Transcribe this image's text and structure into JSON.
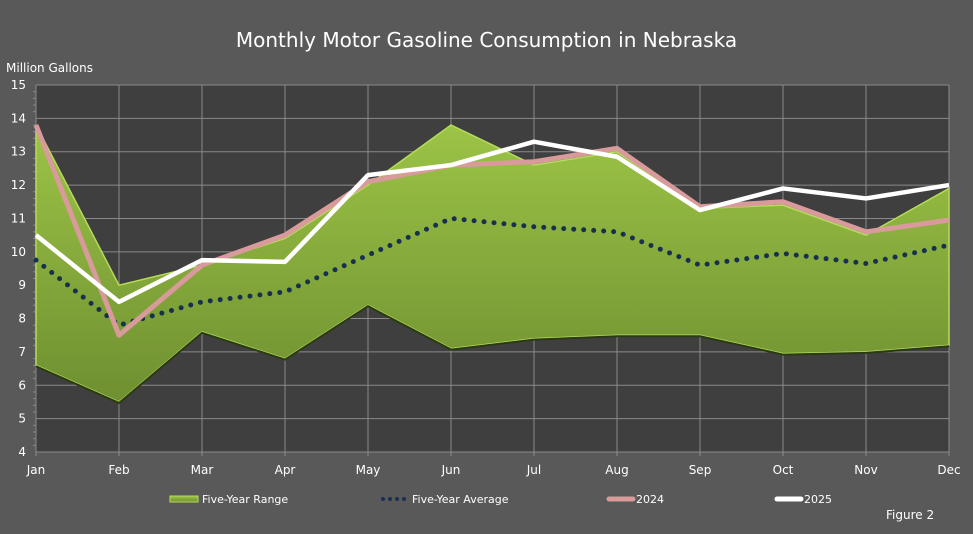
{
  "chart_data": {
    "type": "area+line",
    "title": "Monthly Motor Gasoline Consumption in Nebraska",
    "ylabel": "Million Gallons",
    "xlabel": "",
    "ylim": [
      4,
      15
    ],
    "yticks": [
      4,
      5,
      6,
      7,
      8,
      9,
      10,
      11,
      12,
      13,
      14,
      15
    ],
    "grid": true,
    "legend_position": "bottom",
    "categories": [
      "Jan",
      "Feb",
      "Mar",
      "Apr",
      "May",
      "Jun",
      "Jul",
      "Aug",
      "Sep",
      "Oct",
      "Nov",
      "Dec"
    ],
    "range": {
      "name": "Five-Year Range",
      "color": "#8db33f",
      "max": [
        13.8,
        9.0,
        9.6,
        10.4,
        12.0,
        13.8,
        12.6,
        13.0,
        11.3,
        11.4,
        10.5,
        11.9
      ],
      "min": [
        6.6,
        5.5,
        7.6,
        6.8,
        8.4,
        7.1,
        7.4,
        7.5,
        7.5,
        6.95,
        7.0,
        7.2
      ]
    },
    "series": [
      {
        "name": "Five-Year Average",
        "color": "#17304f",
        "style": "dotted",
        "values": [
          9.75,
          7.8,
          8.5,
          8.8,
          9.9,
          11.0,
          10.75,
          10.6,
          9.6,
          9.95,
          9.65,
          10.2
        ]
      },
      {
        "name": "2024",
        "color": "#d89a9a",
        "style": "solid",
        "values": [
          13.8,
          7.5,
          9.6,
          10.5,
          12.1,
          12.6,
          12.7,
          13.1,
          11.35,
          11.5,
          10.6,
          10.95
        ]
      },
      {
        "name": "2025",
        "color": "#ffffff",
        "style": "solid",
        "values": [
          10.5,
          8.5,
          9.75,
          9.7,
          12.3,
          12.6,
          13.3,
          12.85,
          11.25,
          11.9,
          11.6,
          12.0
        ]
      }
    ]
  },
  "footer": {
    "figure_label": "Figure 2"
  }
}
